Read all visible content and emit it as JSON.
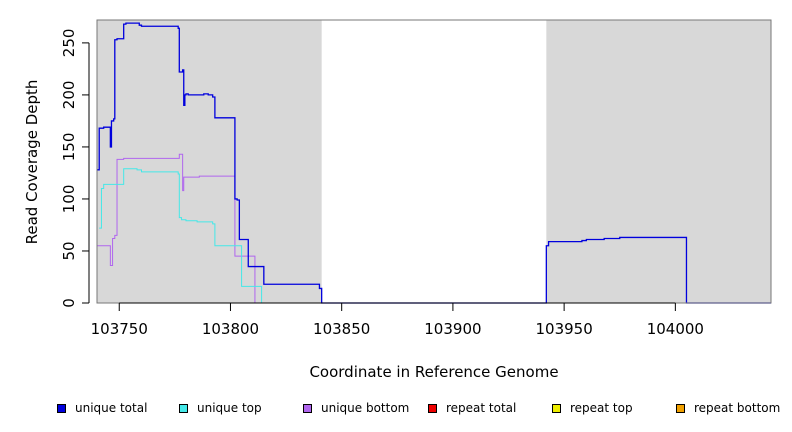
{
  "chart_data": {
    "type": "line",
    "title": "",
    "xlabel": "Coordinate in Reference Genome",
    "ylabel": "Read Coverage Depth",
    "xlim": [
      103740,
      104043
    ],
    "ylim": [
      0,
      272
    ],
    "xticks": [
      103750,
      103800,
      103850,
      103900,
      103950,
      104000
    ],
    "yticks": [
      0,
      50,
      100,
      150,
      200,
      250
    ],
    "shaded_regions": [
      [
        103740,
        103841
      ],
      [
        103942,
        104043
      ]
    ],
    "colors": {
      "shade": "#d8d8d8",
      "unique_total": "#0000dd",
      "unique_top": "#44e8e8",
      "unique_bottom": "#b066ee",
      "repeat_total": "#ee0000",
      "repeat_top": "#eeee00",
      "repeat_bottom": "#f0a000"
    },
    "series": [
      {
        "name": "unique total",
        "x": [
          103740,
          103740.5,
          103741,
          103743,
          103745,
          103746,
          103746.5,
          103747.5,
          103748,
          103749,
          103749.5,
          103752,
          103753,
          103755,
          103757,
          103759,
          103760,
          103765,
          103770,
          103775,
          103776.5,
          103777,
          103778.5,
          103779,
          103779.5,
          103780,
          103781,
          103782,
          103783,
          103786,
          103788,
          103790,
          103792,
          103793,
          103794,
          103801,
          103802,
          103803,
          103804,
          103806,
          103808,
          103810,
          103813,
          103815,
          103822,
          103830,
          103839,
          103840,
          103841,
          103860,
          103880,
          103900,
          103920,
          103941,
          103942,
          103943,
          103950,
          103955,
          103958,
          103960,
          103965,
          103968,
          103970,
          103975,
          104004,
          104005,
          104043
        ],
        "y": [
          128,
          128,
          168,
          169,
          169,
          150,
          175,
          177,
          253,
          254,
          254,
          268,
          269,
          269,
          269,
          267,
          266,
          266,
          266,
          266,
          264,
          222,
          224,
          190,
          200,
          201,
          200,
          200,
          200,
          200,
          201,
          200,
          198,
          178,
          178,
          178,
          100,
          99,
          61,
          61,
          35,
          35,
          35,
          18,
          18,
          18,
          18,
          14,
          0,
          0,
          0,
          0,
          0,
          0,
          55,
          59,
          59,
          59,
          60,
          61,
          61,
          62,
          62,
          63,
          63,
          0,
          0
        ]
      },
      {
        "name": "unique top",
        "x": [
          103741,
          103742,
          103743,
          103746,
          103749,
          103750,
          103752,
          103755,
          103758,
          103760,
          103765,
          103770,
          103775,
          103776.5,
          103777,
          103778,
          103780,
          103785,
          103790,
          103792,
          103793,
          103801,
          103805,
          103810,
          103813,
          103814,
          103815
        ],
        "y": [
          72,
          110,
          114,
          114,
          114,
          114,
          129,
          129,
          128,
          126,
          126,
          126,
          126,
          124,
          82,
          80,
          79,
          78,
          78,
          76,
          55,
          55,
          16,
          16,
          16,
          0,
          0
        ]
      },
      {
        "name": "unique bottom",
        "x": [
          103740,
          103741,
          103745,
          103746,
          103747,
          103748,
          103749,
          103752,
          103760,
          103770,
          103775,
          103776.5,
          103777,
          103778.5,
          103779,
          103779.5,
          103780,
          103785,
          103786,
          103790,
          103795,
          103801,
          103802,
          103805,
          103810,
          103811,
          103812
        ],
        "y": [
          55,
          55,
          55,
          36,
          62,
          65,
          138,
          139,
          139,
          139,
          139,
          139,
          143,
          108,
          121,
          121,
          121,
          121,
          122,
          122,
          122,
          122,
          45,
          45,
          45,
          0,
          0
        ]
      },
      {
        "name": "repeat total",
        "x": [
          103740,
          103841
        ],
        "y": [
          0,
          0
        ]
      },
      {
        "name": "repeat top",
        "x": [
          103740,
          103841
        ],
        "y": [
          0,
          0
        ]
      },
      {
        "name": "repeat bottom",
        "x": [
          103740,
          103841
        ],
        "y": [
          0,
          0
        ]
      }
    ],
    "legend": {
      "placement": "bottom",
      "entries": [
        "unique total",
        "unique top",
        "unique bottom",
        "repeat total",
        "repeat top",
        "repeat bottom"
      ]
    }
  }
}
